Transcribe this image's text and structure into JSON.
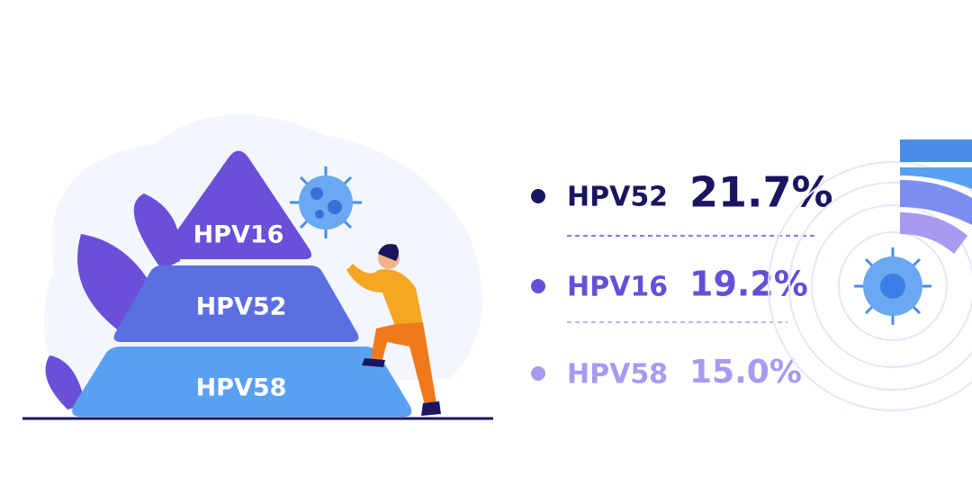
{
  "pyramid": {
    "levels": [
      {
        "label": "HPV16"
      },
      {
        "label": "HPV52"
      },
      {
        "label": "HPV58"
      }
    ]
  },
  "stats": [
    {
      "name": "HPV52",
      "value": "21.7%"
    },
    {
      "name": "HPV16",
      "value": "19.2%"
    },
    {
      "name": "HPV58",
      "value": "15.0%"
    }
  ]
}
